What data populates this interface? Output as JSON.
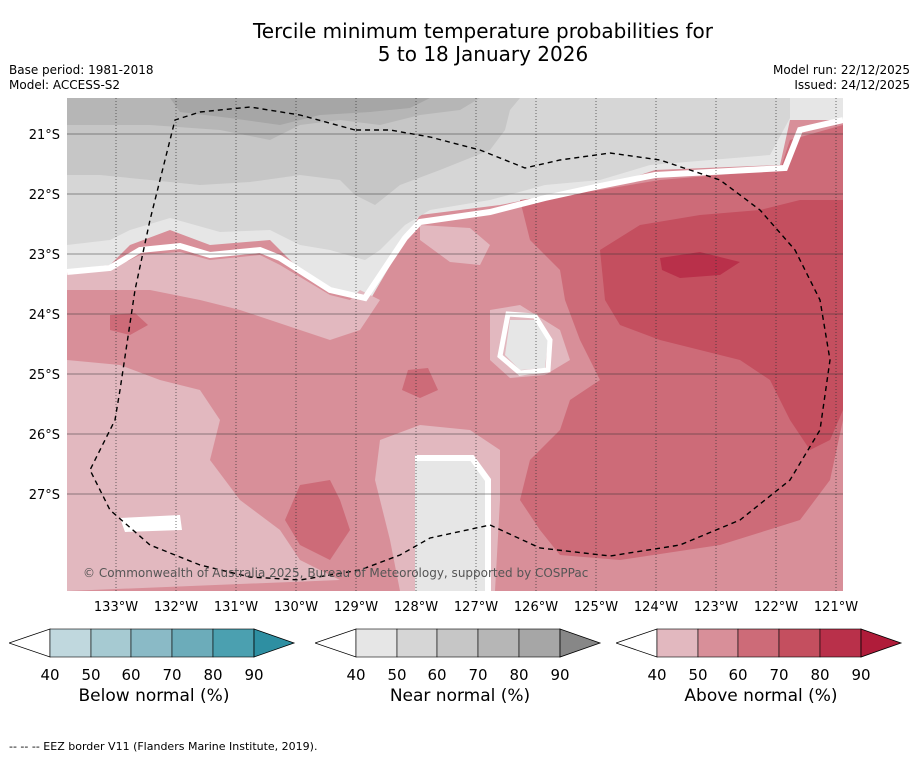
{
  "title_line1": "Tercile minimum temperature probabilities for",
  "title_line2": "5 to 18 January 2026",
  "meta_left": {
    "base_period": "Base period: 1981-2018",
    "model": "Model: ACCESS-S2"
  },
  "meta_right": {
    "model_run": "Model run: 22/12/2025",
    "issued": "Issued: 24/12/2025"
  },
  "lat_labels": [
    "21°S",
    "22°S",
    "23°S",
    "24°S",
    "25°S",
    "26°S",
    "27°S"
  ],
  "lon_labels": [
    "133°W",
    "132°W",
    "131°W",
    "130°W",
    "129°W",
    "128°W",
    "127°W",
    "126°W",
    "125°W",
    "124°W",
    "123°W",
    "122°W",
    "121°W"
  ],
  "attribution": "© Commonwealth of Australia 2025, Bureau of Meteorology, supported by COSPPac",
  "colorbars": [
    {
      "label": "Below normal (%)",
      "ticks": [
        "40",
        "50",
        "60",
        "70",
        "80",
        "90"
      ],
      "colors": [
        "#c0d8de",
        "#a6cad2",
        "#8abac6",
        "#6cacba",
        "#4ba0b0",
        "#2e8fa2"
      ]
    },
    {
      "label": "Near normal (%)",
      "ticks": [
        "40",
        "50",
        "60",
        "70",
        "80",
        "90"
      ],
      "colors": [
        "#e6e6e6",
        "#d6d6d6",
        "#c6c6c6",
        "#b6b6b6",
        "#a6a6a6",
        "#878787"
      ]
    },
    {
      "label": "Above normal (%)",
      "ticks": [
        "40",
        "50",
        "60",
        "70",
        "80",
        "90"
      ],
      "colors": [
        "#e2b8bf",
        "#d88f99",
        "#cd6b78",
        "#c44f5f",
        "#b9304a",
        "#b01c3a"
      ]
    }
  ],
  "footnote": "--  --  -- EEZ border V11 (Flanders Marine Institute, 2019)."
}
